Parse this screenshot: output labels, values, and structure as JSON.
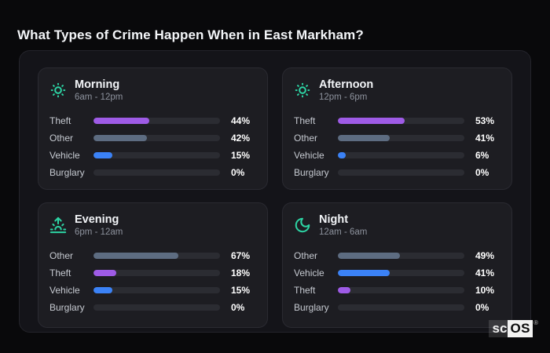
{
  "title": "What Types of Crime Happen When in East Markham?",
  "watermark": {
    "prefix": "sc",
    "suffix": "OS",
    "registered": "®"
  },
  "colors": {
    "accent_icon": "#2dd4a4",
    "theft": "#9e5be6",
    "other": "#5d6c81",
    "vehicle": "#3b82f6",
    "bar_track": "#2b2c32",
    "card_bg": "#1d1d22",
    "panel_bg": "#141419",
    "page_bg": "#09090b"
  },
  "chart_data": {
    "type": "bar",
    "orientation": "horizontal",
    "value_unit": "%",
    "value_range": [
      0,
      100
    ],
    "groups": [
      {
        "name": "Morning",
        "time_range": "6am - 12pm",
        "icon": "sun-icon",
        "bars": [
          {
            "label": "Theft",
            "value": 44,
            "display": "44%",
            "color": "#9e5be6"
          },
          {
            "label": "Other",
            "value": 42,
            "display": "42%",
            "color": "#5d6c81"
          },
          {
            "label": "Vehicle",
            "value": 15,
            "display": "15%",
            "color": "#3b82f6"
          },
          {
            "label": "Burglary",
            "value": 0,
            "display": "0%",
            "color": "#2b2c32"
          }
        ]
      },
      {
        "name": "Afternoon",
        "time_range": "12pm - 6pm",
        "icon": "sun-icon",
        "bars": [
          {
            "label": "Theft",
            "value": 53,
            "display": "53%",
            "color": "#9e5be6"
          },
          {
            "label": "Other",
            "value": 41,
            "display": "41%",
            "color": "#5d6c81"
          },
          {
            "label": "Vehicle",
            "value": 6,
            "display": "6%",
            "color": "#3b82f6"
          },
          {
            "label": "Burglary",
            "value": 0,
            "display": "0%",
            "color": "#2b2c32"
          }
        ]
      },
      {
        "name": "Evening",
        "time_range": "6pm - 12am",
        "icon": "sunrise-icon",
        "bars": [
          {
            "label": "Other",
            "value": 67,
            "display": "67%",
            "color": "#5d6c81"
          },
          {
            "label": "Theft",
            "value": 18,
            "display": "18%",
            "color": "#9e5be6"
          },
          {
            "label": "Vehicle",
            "value": 15,
            "display": "15%",
            "color": "#3b82f6"
          },
          {
            "label": "Burglary",
            "value": 0,
            "display": "0%",
            "color": "#2b2c32"
          }
        ]
      },
      {
        "name": "Night",
        "time_range": "12am - 6am",
        "icon": "moon-icon",
        "bars": [
          {
            "label": "Other",
            "value": 49,
            "display": "49%",
            "color": "#5d6c81"
          },
          {
            "label": "Vehicle",
            "value": 41,
            "display": "41%",
            "color": "#3b82f6"
          },
          {
            "label": "Theft",
            "value": 10,
            "display": "10%",
            "color": "#9e5be6"
          },
          {
            "label": "Burglary",
            "value": 0,
            "display": "0%",
            "color": "#2b2c32"
          }
        ]
      }
    ]
  }
}
